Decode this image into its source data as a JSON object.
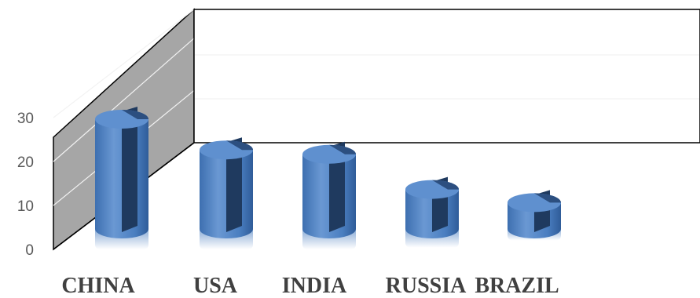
{
  "chart_data": {
    "type": "bar",
    "style": "3d-cylinder",
    "categories": [
      "CHINA",
      "USA",
      "INDIA",
      "RUSSIA",
      "BRAZIL"
    ],
    "series": [
      {
        "values": [
          25,
          18,
          17,
          9,
          6
        ]
      }
    ],
    "yticks": [
      0,
      10,
      20,
      30
    ],
    "ylim": [
      0,
      50
    ],
    "title": "",
    "xlabel": "",
    "ylabel": "",
    "grid": true,
    "legend": "none",
    "colors": {
      "bar_light": "#6a98d3",
      "bar_mid": "#4a7ec0",
      "bar_dark": "#1f3a5f",
      "side_wall": "#a6a6a6",
      "back_wall": "#ffffff",
      "gridline": "#f2f2f2",
      "wall_edge": "#000000"
    }
  }
}
